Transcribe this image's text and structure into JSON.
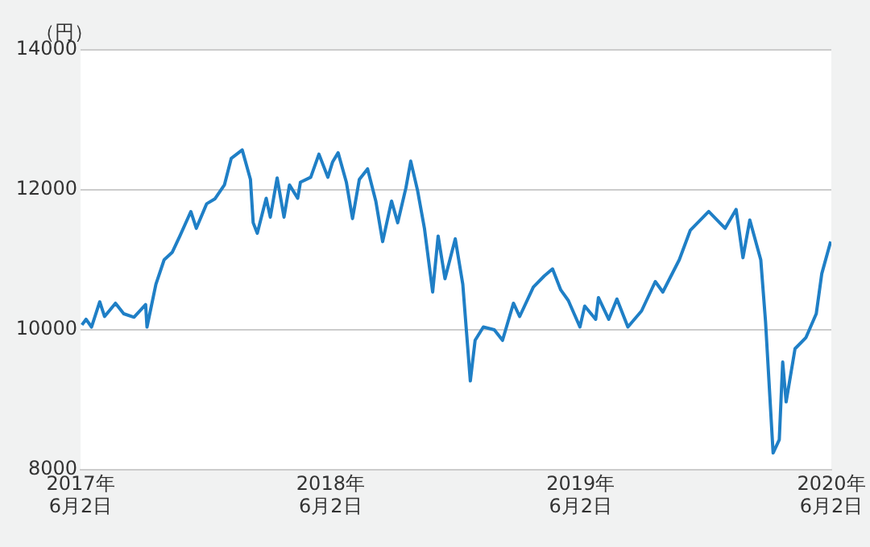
{
  "chart_data": {
    "type": "line",
    "ylabel": "（円）",
    "x": [
      "2017-06-04",
      "2017-06-10",
      "2017-06-18",
      "2017-06-30",
      "2017-07-07",
      "2017-07-23",
      "2017-08-04",
      "2017-08-19",
      "2017-09-05",
      "2017-09-07",
      "2017-09-20",
      "2017-10-02",
      "2017-10-14",
      "2017-10-25",
      "2017-11-10",
      "2017-11-18",
      "2017-12-03",
      "2017-12-15",
      "2017-12-29",
      "2018-01-08",
      "2018-01-24",
      "2018-02-05",
      "2018-02-09",
      "2018-02-15",
      "2018-02-28",
      "2018-03-06",
      "2018-03-16",
      "2018-03-26",
      "2018-04-03",
      "2018-04-15",
      "2018-04-19",
      "2018-05-04",
      "2018-05-16",
      "2018-05-29",
      "2018-06-05",
      "2018-06-13",
      "2018-06-25",
      "2018-07-04",
      "2018-07-14",
      "2018-07-26",
      "2018-08-07",
      "2018-08-17",
      "2018-08-30",
      "2018-09-08",
      "2018-09-20",
      "2018-09-27",
      "2018-10-07",
      "2018-10-17",
      "2018-10-29",
      "2018-11-06",
      "2018-11-16",
      "2018-12-01",
      "2018-12-12",
      "2018-12-23",
      "2018-12-30",
      "2019-01-11",
      "2019-01-27",
      "2019-02-08",
      "2019-02-24",
      "2019-03-05",
      "2019-03-25",
      "2019-04-10",
      "2019-04-22",
      "2019-05-04",
      "2019-05-15",
      "2019-06-01",
      "2019-06-08",
      "2019-06-24",
      "2019-06-28",
      "2019-07-13",
      "2019-07-25",
      "2019-08-10",
      "2019-08-30",
      "2019-09-19",
      "2019-09-30",
      "2019-10-24",
      "2019-11-09",
      "2019-12-06",
      "2019-12-30",
      "2020-01-15",
      "2020-01-25",
      "2020-02-04",
      "2020-02-20",
      "2020-02-27",
      "2020-03-09",
      "2020-03-18",
      "2020-03-23",
      "2020-03-28",
      "2020-04-10",
      "2020-04-26",
      "2020-05-11",
      "2020-05-19",
      "2020-06-01"
    ],
    "series": [
      {
        "color": "#1f7fc6",
        "values": [
          10070,
          10150,
          10040,
          10400,
          10190,
          10380,
          10230,
          10180,
          10360,
          10040,
          10650,
          11000,
          11110,
          11340,
          11690,
          11450,
          11800,
          11870,
          12070,
          12450,
          12570,
          12150,
          11530,
          11380,
          11880,
          11610,
          12170,
          11610,
          12070,
          11880,
          12110,
          12180,
          12510,
          12180,
          12400,
          12530,
          12110,
          11590,
          12150,
          12300,
          11840,
          11260,
          11840,
          11530,
          12030,
          12410,
          11990,
          11450,
          10540,
          11340,
          10730,
          11300,
          10650,
          9270,
          9850,
          10040,
          10000,
          9850,
          10380,
          10190,
          10610,
          10770,
          10870,
          10570,
          10420,
          10040,
          10340,
          10150,
          10460,
          10150,
          10440,
          10040,
          10270,
          10690,
          10540,
          11000,
          11420,
          11690,
          11450,
          11720,
          11030,
          11570,
          11000,
          10110,
          8240,
          8430,
          9540,
          8970,
          9730,
          9890,
          10230,
          10800,
          11260
        ]
      }
    ],
    "xlim": [
      "2017-06-02",
      "2020-06-02"
    ],
    "xticks": [
      {
        "value": "2017-06-02",
        "label": "2017年\n6月2日"
      },
      {
        "value": "2018-06-02",
        "label": "2018年\n6月2日"
      },
      {
        "value": "2019-06-02",
        "label": "2019年\n6月2日"
      },
      {
        "value": "2020-06-02",
        "label": "2020年\n6月2日"
      }
    ],
    "ylim": [
      8000,
      14000
    ],
    "yticks": [
      8000,
      10000,
      12000,
      14000
    ],
    "grid": "y",
    "legend": false,
    "marker": "none",
    "line_style": "solid"
  }
}
